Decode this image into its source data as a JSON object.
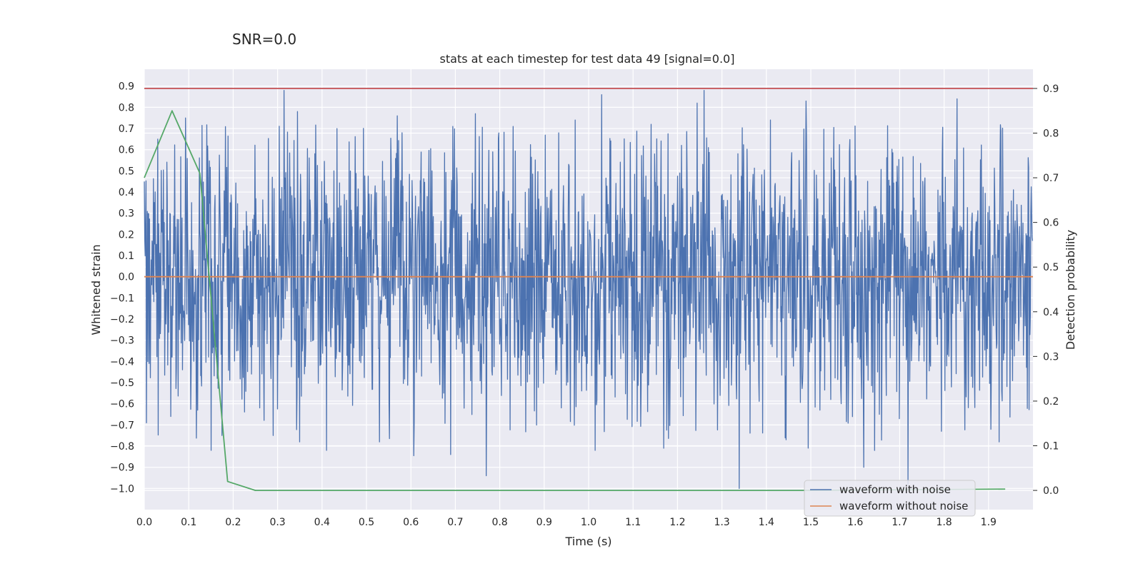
{
  "chart_data": {
    "type": "line",
    "suptitle": "SNR=0.0",
    "title": "stats at each timestep for test data 49 [signal=0.0]",
    "xlabel": "Time (s)",
    "ylabel_left": "Whitened strain",
    "ylabel_right": "Detection probability",
    "xlim": [
      0.0,
      2.0
    ],
    "ylim_left": [
      -1.1,
      0.98
    ],
    "ylim_right": [
      -0.043,
      0.943
    ],
    "x_ticks": [
      0.0,
      0.1,
      0.2,
      0.3,
      0.4,
      0.5,
      0.6,
      0.7,
      0.8,
      0.9,
      1.0,
      1.1,
      1.2,
      1.3,
      1.4,
      1.5,
      1.6,
      1.7,
      1.8,
      1.9
    ],
    "x_tick_labels": [
      "0.0",
      "0.1",
      "0.2",
      "0.3",
      "0.4",
      "0.5",
      "0.6",
      "0.7",
      "0.8",
      "0.9",
      "1.0",
      "1.1",
      "1.2",
      "1.3",
      "1.4",
      "1.5",
      "1.6",
      "1.7",
      "1.8",
      "1.9"
    ],
    "y_left_ticks": [
      0.9,
      0.8,
      0.7,
      0.6,
      0.5,
      0.4,
      0.3,
      0.2,
      0.1,
      0.0,
      -0.1,
      -0.2,
      -0.3,
      -0.4,
      -0.5,
      -0.6,
      -0.7,
      -0.8,
      -0.9,
      -1.0
    ],
    "y_left_tick_labels": [
      "0.9",
      "0.8",
      "0.7",
      "0.6",
      "0.5",
      "0.4",
      "0.3",
      "0.2",
      "0.1",
      "0.0",
      "−0.1",
      "−0.2",
      "−0.3",
      "−0.4",
      "−0.5",
      "−0.6",
      "−0.7",
      "−0.8",
      "−0.9",
      "−1.0"
    ],
    "y_right_ticks": [
      0.9,
      0.8,
      0.7,
      0.6,
      0.5,
      0.4,
      0.3,
      0.2,
      0.1,
      0.0
    ],
    "y_right_tick_labels": [
      "0.9",
      "0.8",
      "0.7",
      "0.6",
      "0.5",
      "0.4",
      "0.3",
      "0.2",
      "0.1",
      "0.0"
    ],
    "series": [
      {
        "name": "waveform with noise",
        "axis": "left",
        "color": "#4c72b0",
        "style": "noise",
        "n_samples": 2048,
        "seed": 49,
        "std": 0.33,
        "peaks": [
          {
            "x": 0.0,
            "y": 0.45
          },
          {
            "x": 0.005,
            "y": -0.69
          },
          {
            "x": 0.03,
            "y": 0.65
          },
          {
            "x": 0.06,
            "y": -0.66
          },
          {
            "x": 0.093,
            "y": 0.75
          },
          {
            "x": 0.12,
            "y": -0.63
          },
          {
            "x": 0.15,
            "y": -0.82
          },
          {
            "x": 0.175,
            "y": -0.75
          },
          {
            "x": 0.29,
            "y": -0.75
          },
          {
            "x": 0.315,
            "y": 0.88
          },
          {
            "x": 0.345,
            "y": 0.78
          },
          {
            "x": 0.35,
            "y": -0.78
          },
          {
            "x": 0.41,
            "y": -0.82
          },
          {
            "x": 0.53,
            "y": -0.78
          },
          {
            "x": 0.57,
            "y": 0.76
          },
          {
            "x": 0.69,
            "y": -0.84
          },
          {
            "x": 0.745,
            "y": 0.77
          },
          {
            "x": 0.77,
            "y": -0.94
          },
          {
            "x": 0.83,
            "y": 0.71
          },
          {
            "x": 0.97,
            "y": 0.74
          },
          {
            "x": 1.015,
            "y": -0.82
          },
          {
            "x": 1.03,
            "y": 0.86
          },
          {
            "x": 1.17,
            "y": -0.81
          },
          {
            "x": 1.245,
            "y": 0.82
          },
          {
            "x": 1.26,
            "y": 0.88
          },
          {
            "x": 1.34,
            "y": -1.0
          },
          {
            "x": 1.41,
            "y": 0.74
          },
          {
            "x": 1.445,
            "y": -0.77
          },
          {
            "x": 1.49,
            "y": 0.83
          },
          {
            "x": 1.62,
            "y": -0.9
          },
          {
            "x": 1.72,
            "y": -0.98
          },
          {
            "x": 1.83,
            "y": 0.84
          },
          {
            "x": 1.925,
            "y": -0.78
          }
        ]
      },
      {
        "name": "waveform without noise",
        "axis": "left",
        "color": "#dd8452",
        "x": [
          0.0,
          2.0
        ],
        "y": [
          0.0,
          0.0
        ]
      },
      {
        "name": "detection probability",
        "axis": "right",
        "color": "#55a868",
        "x": [
          0.0,
          0.0625,
          0.125,
          0.1875,
          0.25,
          0.3125,
          1.5,
          1.9375
        ],
        "y": [
          0.7,
          0.85,
          0.71,
          0.02,
          0.0,
          0.0,
          0.0,
          0.003
        ]
      },
      {
        "name": "threshold",
        "axis": "right",
        "color": "#c44e52",
        "x": [
          0.0,
          2.0
        ],
        "y": [
          0.9,
          0.9
        ]
      }
    ],
    "legend": {
      "position": "lower-right",
      "entries": [
        {
          "label": "waveform with noise",
          "color": "#4c72b0"
        },
        {
          "label": "waveform without noise",
          "color": "#dd8452"
        }
      ]
    }
  }
}
